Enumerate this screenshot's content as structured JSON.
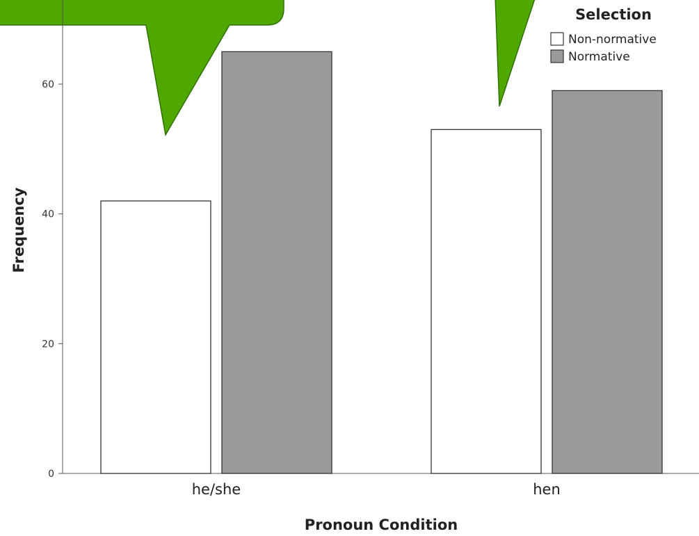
{
  "chart_data": {
    "type": "bar",
    "title": "",
    "xlabel": "Pronoun Condition",
    "ylabel": "Frequency",
    "categories": [
      "he/she",
      "hen"
    ],
    "yticks": [
      0,
      20,
      40,
      60
    ],
    "ylim": [
      0,
      70
    ],
    "grid": false,
    "legend": {
      "title": "Selection",
      "placement": "top-right"
    },
    "series": [
      {
        "name": "Non-normative",
        "values": [
          42,
          53
        ],
        "color": "#ffffff"
      },
      {
        "name": "Normative",
        "values": [
          65,
          59
        ],
        "color": "#9a9a9a"
      }
    ]
  },
  "callout_color": "#4ea800"
}
